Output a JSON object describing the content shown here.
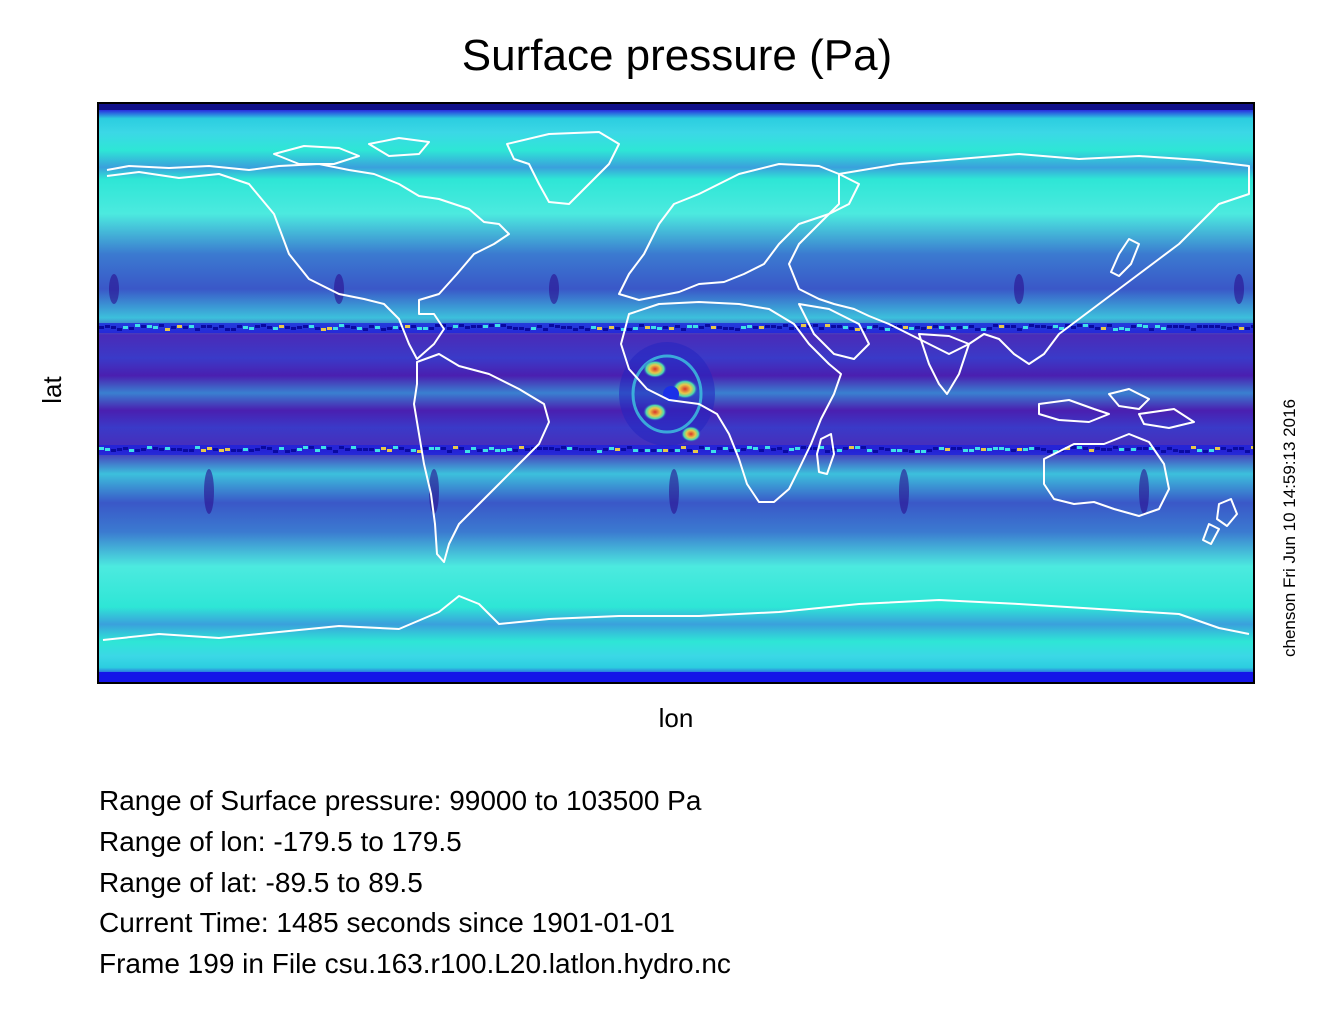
{
  "chart_data": {
    "type": "heatmap",
    "title": "Surface pressure (Pa)",
    "xlabel": "lon",
    "ylabel": "lat",
    "xlim": [
      -179.5,
      179.5
    ],
    "ylim": [
      -89.5,
      89.5
    ],
    "value_range": [
      99000,
      103500
    ],
    "value_units": "Pa",
    "colormap": [
      "#1a1aff",
      "#4a0fb0",
      "#3a58c8",
      "#2ee6d6",
      "#5af0e6"
    ],
    "coastline_color": "#ffffff",
    "grid": false,
    "annotations": [
      "Range of Surface pressure: 99000 to 103500 Pa",
      "Range of lon: -179.5 to 179.5",
      "Range of lat: -89.5 to 89.5",
      "Current Time: 1485 seconds since 1901-01-01",
      "Frame 199 in File csu.163.r100.L20.latlon.hydro.nc"
    ],
    "stamp": "chenson Fri Jun 10 14:59:13 2016"
  }
}
